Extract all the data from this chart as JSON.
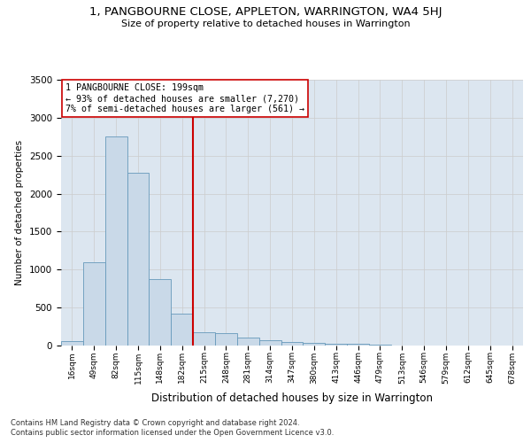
{
  "title": "1, PANGBOURNE CLOSE, APPLETON, WARRINGTON, WA4 5HJ",
  "subtitle": "Size of property relative to detached houses in Warrington",
  "xlabel": "Distribution of detached houses by size in Warrington",
  "ylabel": "Number of detached properties",
  "footer1": "Contains HM Land Registry data © Crown copyright and database right 2024.",
  "footer2": "Contains public sector information licensed under the Open Government Licence v3.0.",
  "bar_labels": [
    "16sqm",
    "49sqm",
    "82sqm",
    "115sqm",
    "148sqm",
    "182sqm",
    "215sqm",
    "248sqm",
    "281sqm",
    "314sqm",
    "347sqm",
    "380sqm",
    "413sqm",
    "446sqm",
    "479sqm",
    "513sqm",
    "546sqm",
    "579sqm",
    "612sqm",
    "645sqm",
    "678sqm"
  ],
  "bar_values": [
    55,
    1100,
    2750,
    2280,
    870,
    420,
    170,
    160,
    100,
    65,
    52,
    35,
    20,
    18,
    8,
    5,
    5,
    3,
    2,
    2,
    2
  ],
  "bar_color": "#c9d9e8",
  "bar_edgecolor": "#6699bb",
  "grid_color": "#cccccc",
  "bg_color": "#dce6f0",
  "vline_color": "#cc0000",
  "vline_x_index": 5,
  "annotation_text": "1 PANGBOURNE CLOSE: 199sqm\n← 93% of detached houses are smaller (7,270)\n7% of semi-detached houses are larger (561) →",
  "annotation_box_edgecolor": "#cc0000",
  "ylim": [
    0,
    3500
  ],
  "yticks": [
    0,
    500,
    1000,
    1500,
    2000,
    2500,
    3000,
    3500
  ]
}
